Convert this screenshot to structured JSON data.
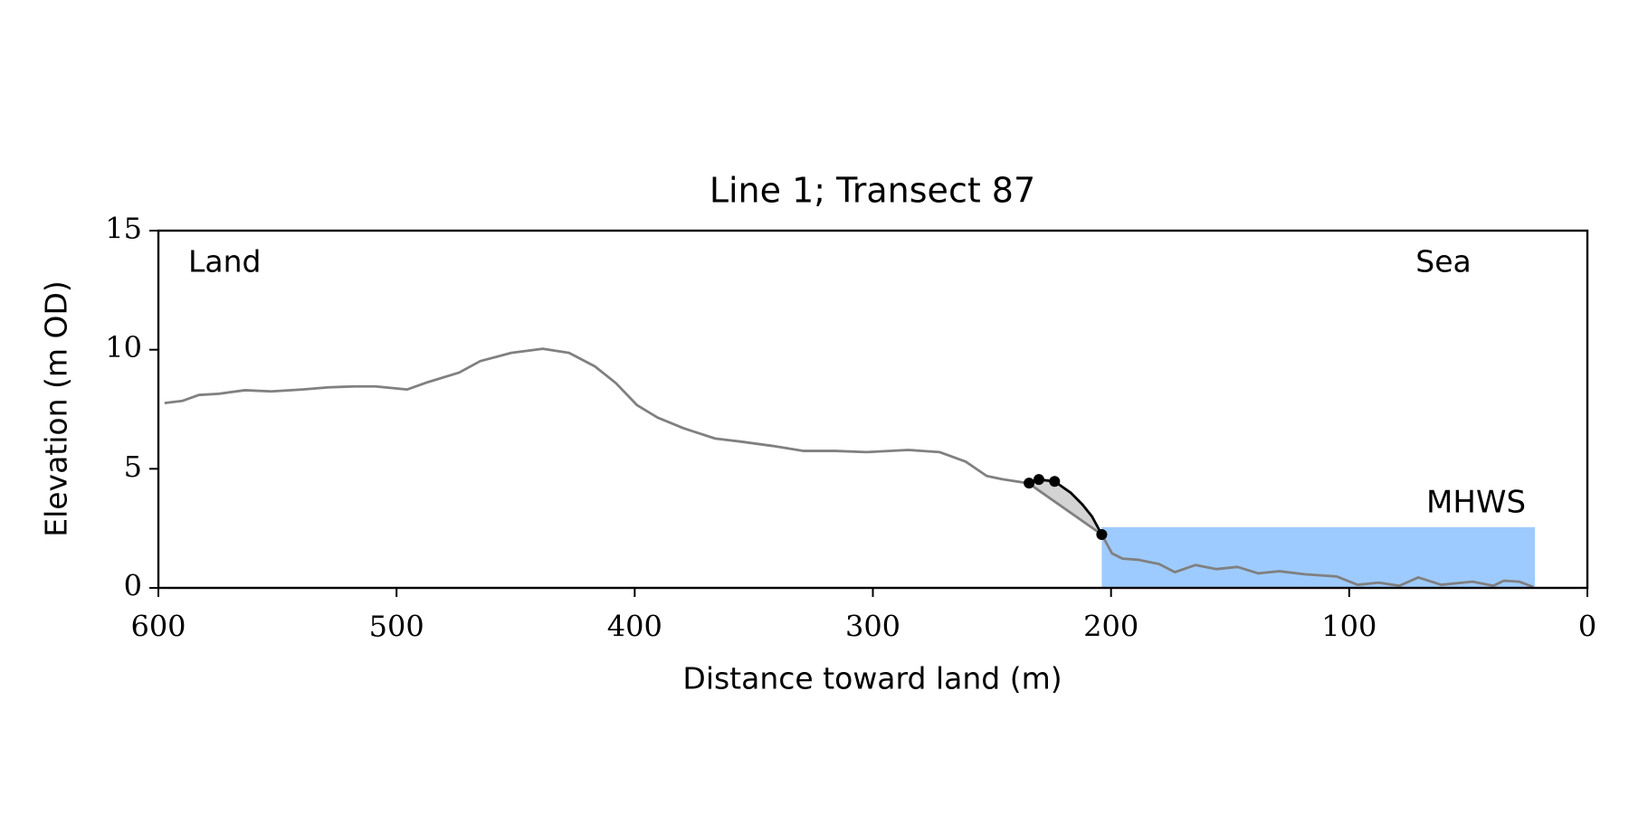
{
  "chart_data": {
    "type": "line",
    "title": "Line 1; Transect 87",
    "xlabel": "Distance toward land (m)",
    "ylabel": "Elevation (m OD)",
    "annotations": [
      "Land",
      "Sea"
    ],
    "xlim": [
      600,
      0
    ],
    "xticks": [
      600,
      500,
      400,
      300,
      200,
      100,
      0
    ],
    "ylim": [
      0,
      15
    ],
    "yticks": [
      0,
      5,
      10,
      15
    ],
    "series": [
      {
        "color": "#808080",
        "x": [
          597.4,
          590,
          583,
          574.6,
          563.6,
          552.6,
          539.5,
          528.5,
          517.5,
          508.8,
          495.6,
          486.8,
          473.7,
          464.9,
          451.8,
          438.6,
          427.6,
          416.7,
          407.9,
          399.1,
          390.4,
          379.4,
          366.2,
          355.3,
          342.1,
          329,
          315.8,
          302.6,
          285.1,
          271.9,
          261,
          252.2,
          245.6,
          234.6,
          203.9,
          199.6,
          195.2,
          188.6,
          179.8,
          173.2,
          164.5,
          155.7,
          146.9,
          138.2,
          129.4,
          118.4,
          105.3,
          96.5,
          87.7,
          78.9,
          71,
          61.4,
          48.2,
          39.5,
          35.1,
          28.5,
          22.8
        ],
        "values": [
          7.76,
          7.85,
          8.1,
          8.15,
          8.3,
          8.25,
          8.33,
          8.42,
          8.46,
          8.46,
          8.33,
          8.64,
          9.04,
          9.52,
          9.87,
          10.04,
          9.87,
          9.3,
          8.6,
          7.68,
          7.15,
          6.7,
          6.27,
          6.14,
          5.96,
          5.75,
          5.75,
          5.7,
          5.79,
          5.7,
          5.3,
          4.7,
          4.56,
          4.39,
          2.24,
          1.45,
          1.23,
          1.18,
          1.0,
          0.66,
          0.96,
          0.79,
          0.88,
          0.61,
          0.7,
          0.57,
          0.48,
          0.13,
          0.22,
          0.09,
          0.44,
          0.13,
          0.26,
          0.09,
          0.3,
          0.26,
          0.04
        ]
      },
      {
        "color": "#000000",
        "x": [
          234.4,
          230.3,
          223.7,
          217,
          212,
          208,
          203.9
        ],
        "values": [
          4.4,
          4.55,
          4.47,
          4.0,
          3.5,
          3.0,
          2.24
        ],
        "markers": [
          0,
          1,
          2,
          6
        ]
      }
    ],
    "erosion_color": "#d3d3d3",
    "mhws": {
      "label": "MHWS",
      "level": 2.55,
      "x_range": [
        203.9,
        22
      ],
      "color": "#9ecbff",
      "label_color": "#6a9fce"
    }
  }
}
